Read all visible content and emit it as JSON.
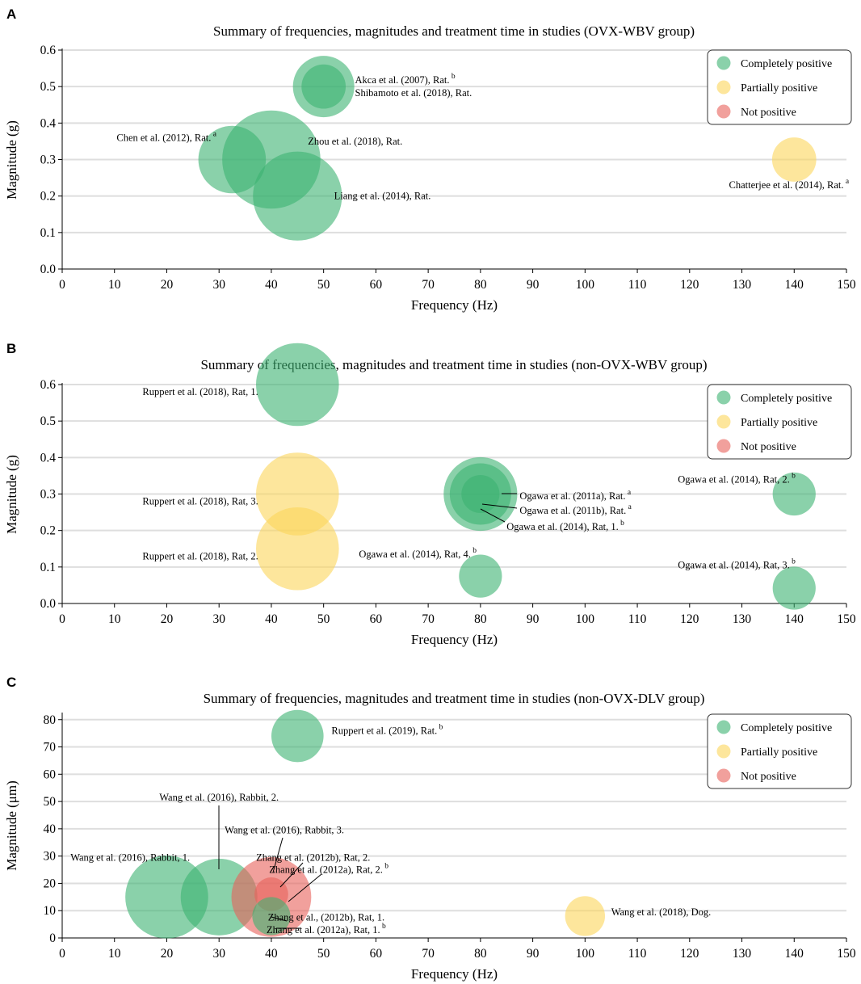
{
  "colors": {
    "completely_positive": "#3cb371",
    "partially_positive": "#fcd55a",
    "not_positive": "#e8605a"
  },
  "chart_data": [
    {
      "panel": "A",
      "type": "scatter",
      "title": "Summary of frequencies, magnitudes and treatment time in studies (OVX-WBV group)",
      "xlabel": "Frequency (Hz)",
      "ylabel": "Magnitude (g)",
      "xlim": [
        0,
        150
      ],
      "ylim": [
        0,
        0.6
      ],
      "xticks": [
        0,
        10,
        20,
        30,
        40,
        50,
        60,
        70,
        80,
        90,
        100,
        110,
        120,
        130,
        140,
        150
      ],
      "xtick_labels": [
        "0",
        "10",
        "20",
        "30",
        "40",
        "50",
        "60",
        "70",
        "80",
        "90",
        "100",
        "110",
        "120",
        "130",
        "140",
        "150"
      ],
      "yticks": [
        0,
        0.1,
        0.2,
        0.3,
        0.4,
        0.5,
        0.6
      ],
      "ytick_labels": [
        "0.0",
        "0.1",
        "0.2",
        "0.3",
        "0.4",
        "0.5",
        "0.6"
      ],
      "legend": [
        "Completely positive",
        "Partially positive",
        "Not positive"
      ],
      "legend_position": "top-right",
      "points": [
        {
          "x": 32.5,
          "y": 0.3,
          "size": 1.1,
          "category": "completely_positive"
        },
        {
          "x": 40,
          "y": 0.3,
          "size": 1.6,
          "category": "completely_positive"
        },
        {
          "x": 45,
          "y": 0.2,
          "size": 1.45,
          "category": "completely_positive"
        },
        {
          "x": 50,
          "y": 0.5,
          "size": 1.0,
          "category": "completely_positive"
        },
        {
          "x": 50,
          "y": 0.5,
          "size": 0.72,
          "category": "completely_positive"
        },
        {
          "x": 140,
          "y": 0.3,
          "size": 0.72,
          "category": "partially_positive"
        }
      ],
      "annotations": [
        {
          "text": "Akca et al. (2007), Rat.",
          "sup": "b",
          "at": [
            56,
            0.5
          ],
          "valign": "bottom"
        },
        {
          "text": "Shibamoto et al. (2018), Rat.",
          "sup": "",
          "at": [
            56,
            0.5
          ],
          "valign": "top"
        },
        {
          "text": "Chen et al. (2012), Rat.",
          "sup": "a",
          "at": [
            29.5,
            0.36
          ],
          "anchor": "end"
        },
        {
          "text": "Zhou et al. (2018), Rat.",
          "sup": "",
          "at": [
            47,
            0.35
          ]
        },
        {
          "text": "Liang et al. (2014), Rat.",
          "sup": "",
          "at": [
            52,
            0.2
          ]
        },
        {
          "text": "Chatterjee et al. (2014), Rat.",
          "sup": "a",
          "at": [
            139,
            0.23
          ],
          "anchor": "middle"
        }
      ]
    },
    {
      "panel": "B",
      "type": "scatter",
      "title": "Summary of frequencies, magnitudes and treatment time in studies (non-OVX-WBV group)",
      "xlabel": "Frequency (Hz)",
      "ylabel": "Magnitude (g)",
      "xlim": [
        0,
        150
      ],
      "ylim": [
        0,
        0.6
      ],
      "xticks": [
        0,
        10,
        20,
        30,
        40,
        50,
        60,
        70,
        80,
        90,
        100,
        110,
        120,
        130,
        140,
        150
      ],
      "xtick_labels": [
        "0",
        "10",
        "20",
        "30",
        "40",
        "50",
        "60",
        "70",
        "80",
        "90",
        "100",
        "110",
        "120",
        "130",
        "140",
        "150"
      ],
      "yticks": [
        0,
        0.1,
        0.2,
        0.3,
        0.4,
        0.5,
        0.6
      ],
      "ytick_labels": [
        "0.0",
        "0.1",
        "0.2",
        "0.3",
        "0.4",
        "0.5",
        "0.6"
      ],
      "legend": [
        "Completely positive",
        "Partially positive",
        "Not positive"
      ],
      "legend_position": "top-right",
      "points": [
        {
          "x": 45,
          "y": 0.6,
          "size": 1.35,
          "category": "completely_positive"
        },
        {
          "x": 45,
          "y": 0.3,
          "size": 1.35,
          "category": "partially_positive"
        },
        {
          "x": 45,
          "y": 0.15,
          "size": 1.35,
          "category": "partially_positive"
        },
        {
          "x": 80,
          "y": 0.3,
          "size": 1.2,
          "category": "completely_positive"
        },
        {
          "x": 80,
          "y": 0.3,
          "size": 1.0,
          "category": "completely_positive"
        },
        {
          "x": 80,
          "y": 0.3,
          "size": 0.62,
          "category": "completely_positive"
        },
        {
          "x": 80,
          "y": 0.075,
          "size": 0.7,
          "category": "completely_positive"
        },
        {
          "x": 140,
          "y": 0.3,
          "size": 0.7,
          "category": "completely_positive"
        },
        {
          "x": 140,
          "y": 0.042,
          "size": 0.7,
          "category": "completely_positive"
        }
      ],
      "annotations": [
        {
          "text": "Ruppert et al. (2018), Rat, 1.",
          "sup": "",
          "at": [
            37.5,
            0.58
          ],
          "anchor": "end"
        },
        {
          "text": "Ruppert et al. (2018), Rat, 3.",
          "sup": "",
          "at": [
            37.5,
            0.28
          ],
          "anchor": "end"
        },
        {
          "text": "Ruppert et al. (2018), Rat, 2.",
          "sup": "",
          "at": [
            37.5,
            0.13
          ],
          "anchor": "end"
        },
        {
          "text": "Ogawa et al. (2011a), Rat.",
          "sup": "a",
          "at": [
            87.5,
            0.295
          ]
        },
        {
          "text": "Ogawa et al. (2011b), Rat.",
          "sup": "a",
          "at": [
            87.5,
            0.255
          ]
        },
        {
          "text": "Ogawa et al. (2014), Rat, 1.",
          "sup": "b",
          "at": [
            85,
            0.21
          ]
        },
        {
          "text": "Ogawa et al. (2014), Rat, 2.",
          "sup": "b",
          "at": [
            129,
            0.34
          ],
          "anchor": "middle"
        },
        {
          "text": "Ogawa et al. (2014), Rat, 4.",
          "sup": "b",
          "at": [
            68,
            0.135
          ],
          "anchor": "middle"
        },
        {
          "text": "Ogawa et al. (2014), Rat, 3.",
          "sup": "b",
          "at": [
            129,
            0.105
          ],
          "anchor": "middle"
        }
      ]
    },
    {
      "panel": "C",
      "type": "scatter",
      "title": "Summary of frequencies, magnitudes and treatment time in studies (non-OVX-DLV group)",
      "xlabel": "Frequency (Hz)",
      "ylabel": "Magnitude (μm)",
      "xlim": [
        0,
        150
      ],
      "ylim": [
        0,
        82
      ],
      "xticks": [
        0,
        10,
        20,
        30,
        40,
        50,
        60,
        70,
        80,
        90,
        100,
        110,
        120,
        130,
        140,
        150
      ],
      "xtick_labels": [
        "0",
        "10",
        "20",
        "30",
        "40",
        "50",
        "60",
        "70",
        "80",
        "90",
        "100",
        "110",
        "120",
        "130",
        "140",
        "150"
      ],
      "yticks": [
        0,
        10,
        20,
        30,
        40,
        50,
        60,
        70,
        80
      ],
      "ytick_labels": [
        "0",
        "10",
        "20",
        "30",
        "40",
        "50",
        "60",
        "70",
        "80"
      ],
      "legend": [
        "Completely positive",
        "Partially positive",
        "Not positive"
      ],
      "legend_position": "top-right",
      "points": [
        {
          "x": 45,
          "y": 74,
          "size": 0.85,
          "category": "completely_positive"
        },
        {
          "x": 20,
          "y": 15,
          "size": 1.35,
          "category": "completely_positive"
        },
        {
          "x": 30,
          "y": 15,
          "size": 1.25,
          "category": "completely_positive"
        },
        {
          "x": 40,
          "y": 15,
          "size": 1.3,
          "category": "not_positive"
        },
        {
          "x": 40,
          "y": 16,
          "size": 0.55,
          "category": "not_positive"
        },
        {
          "x": 40,
          "y": 8,
          "size": 0.62,
          "category": "completely_positive"
        },
        {
          "x": 100,
          "y": 8,
          "size": 0.65,
          "category": "partially_positive"
        }
      ],
      "annotations": [
        {
          "text": "Ruppert et al. (2019), Rat.",
          "sup": "b",
          "at": [
            51.5,
            76
          ]
        },
        {
          "text": "Wang et al. (2016), Rabbit, 2.",
          "sup": "",
          "at": [
            30,
            51.5
          ],
          "anchor": "middle"
        },
        {
          "text": "Wang et al. (2016), Rabbit, 3.",
          "sup": "",
          "at": [
            42.5,
            39.5
          ],
          "anchor": "middle"
        },
        {
          "text": "Wang et al. (2016), Rabbit, 1.",
          "sup": "",
          "at": [
            13,
            29.5
          ],
          "anchor": "middle"
        },
        {
          "text": "Zhang et al. (2012b), Rat, 2.",
          "sup": "",
          "at": [
            48,
            29.5
          ],
          "anchor": "middle"
        },
        {
          "text": "Zhang et al. (2012a), Rat, 2.",
          "sup": "b",
          "at": [
            51,
            25
          ],
          "anchor": "middle"
        },
        {
          "text": "Zhang et al., (2012b), Rat, 1.",
          "sup": "",
          "at": [
            50.5,
            7.5
          ],
          "anchor": "middle"
        },
        {
          "text": "Wang et al. (2018), Dog.",
          "sup": "",
          "at": [
            105,
            9.5
          ]
        },
        {
          "text": "Zhang et al. (2012a), Rat, 1.",
          "sup": "b",
          "at": [
            50.5,
            3
          ],
          "anchor": "middle"
        }
      ]
    }
  ]
}
